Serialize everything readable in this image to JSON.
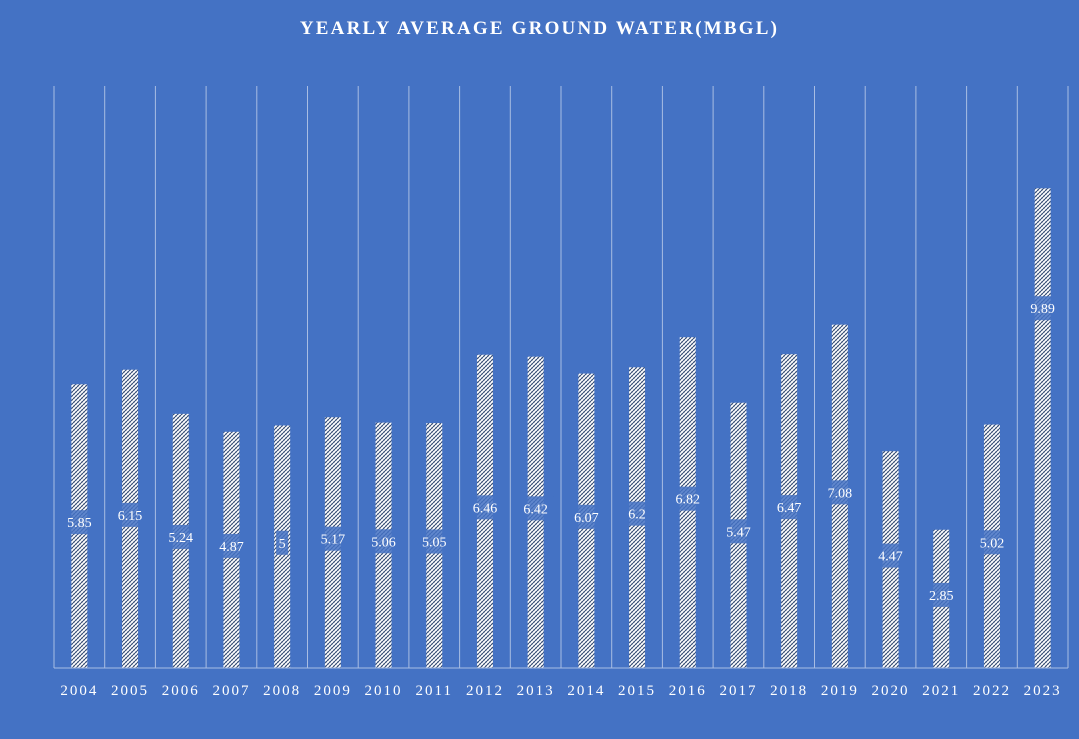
{
  "chart_data": {
    "type": "bar",
    "title": "YEARLY AVERAGE GROUND WATER(MBGL)",
    "xlabel": "",
    "ylabel": "",
    "ylim": [
      0,
      12
    ],
    "grid": "vertical",
    "legend": "none",
    "categories": [
      "2004",
      "2005",
      "2006",
      "2007",
      "2008",
      "2009",
      "2010",
      "2011",
      "2012",
      "2013",
      "2014",
      "2015",
      "2016",
      "2017",
      "2018",
      "2019",
      "2020",
      "2021",
      "2022",
      "2023"
    ],
    "values": [
      5.85,
      6.15,
      5.24,
      4.87,
      5,
      5.17,
      5.06,
      5.05,
      6.46,
      6.42,
      6.07,
      6.2,
      6.82,
      5.47,
      6.47,
      7.08,
      4.47,
      2.85,
      5.02,
      9.89
    ],
    "colors": {
      "background": "#4472c4",
      "bar_fill": "#ffffff",
      "bar_pattern": "#1f3864",
      "label_box": "#4472c4",
      "text": "#ffffff",
      "grid": "#a9bde3"
    }
  }
}
